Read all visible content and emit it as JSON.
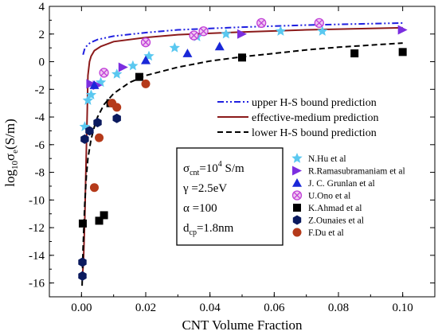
{
  "chart_data": {
    "type": "scatter",
    "xlabel": "CNT Volume Fraction",
    "ylabel": {
      "main": "log",
      "sub1": "10",
      "mid": "σ",
      "sub2": "e",
      "tail": "(S/m)"
    },
    "xlim": [
      -0.01,
      0.11
    ],
    "ylim": [
      -17,
      4
    ],
    "x_ticks": [
      0.0,
      0.02,
      0.04,
      0.06,
      0.08,
      0.1
    ],
    "x_tick_labels": [
      "0.00",
      "0.02",
      "0.04",
      "0.06",
      "0.08",
      "0.10"
    ],
    "y_ticks": [
      -16,
      -14,
      -12,
      -10,
      -8,
      -6,
      -4,
      -2,
      0,
      2,
      4
    ],
    "y_tick_labels": [
      "-16",
      "-14",
      "-12",
      "-10",
      "-8",
      "-6",
      "-4",
      "-2",
      "0",
      "2",
      "4"
    ],
    "grid": false,
    "line_legend_placement": "center-right",
    "marker_legend_placement": "bottom-right",
    "lines": [
      {
        "name": "upper H-S bound prediction",
        "color": "#1f1fe0",
        "dash": "dashdotdot",
        "x": [
          0.0005,
          0.001,
          0.002,
          0.003,
          0.005,
          0.01,
          0.02,
          0.03,
          0.05,
          0.07,
          0.1
        ],
        "y": [
          0.5,
          0.95,
          1.25,
          1.4,
          1.6,
          1.85,
          2.1,
          2.3,
          2.5,
          2.65,
          2.8
        ]
      },
      {
        "name": "effective-medium prediction",
        "color": "#8b1a1a",
        "dash": "solid",
        "x": [
          0.0003,
          0.0006,
          0.0008,
          0.001,
          0.0012,
          0.0014,
          0.0016,
          0.0018,
          0.002,
          0.0025,
          0.003,
          0.004,
          0.006,
          0.01,
          0.02,
          0.03,
          0.05,
          0.07,
          0.1
        ],
        "y": [
          -15.5,
          -14.5,
          -13,
          -11.5,
          -9.5,
          -7.5,
          -5.5,
          -3.5,
          -1.0,
          0.0,
          0.4,
          0.8,
          1.1,
          1.45,
          1.75,
          1.95,
          2.15,
          2.3,
          2.45
        ]
      },
      {
        "name": "lower H-S bound prediction",
        "color": "#000000",
        "dash": "dashed",
        "x": [
          0.0002,
          0.0005,
          0.001,
          0.0015,
          0.002,
          0.003,
          0.004,
          0.005,
          0.007,
          0.01,
          0.015,
          0.02,
          0.03,
          0.04,
          0.05,
          0.06,
          0.07,
          0.08,
          0.09,
          0.1
        ],
        "y": [
          -16.2,
          -13.5,
          -10.3,
          -8.3,
          -7.0,
          -5.6,
          -4.7,
          -4.0,
          -3.1,
          -2.3,
          -1.5,
          -1.0,
          -0.4,
          0.05,
          0.35,
          0.6,
          0.85,
          1.05,
          1.2,
          1.35
        ]
      }
    ],
    "series": [
      {
        "name": "N.Hu et al",
        "color": "#5ac8f0",
        "marker": "star",
        "x": [
          0.001,
          0.002,
          0.003,
          0.006,
          0.011,
          0.016,
          0.021,
          0.029,
          0.036,
          0.045,
          0.062,
          0.075
        ],
        "y": [
          -4.7,
          -2.8,
          -2.4,
          -1.5,
          -0.9,
          -0.3,
          0.4,
          1.0,
          1.8,
          2.0,
          2.2,
          2.2
        ]
      },
      {
        "name": "R.Ramasubramaniam et al",
        "color": "#7b2ee0",
        "marker": "tri-right",
        "x": [
          0.003,
          0.005,
          0.013,
          0.05,
          0.1
        ],
        "y": [
          -1.6,
          -1.7,
          -0.4,
          2.0,
          2.3
        ]
      },
      {
        "name": "J. C. Grunlan et al",
        "color": "#1a28d8",
        "marker": "tri-up",
        "x": [
          0.004,
          0.02,
          0.033,
          0.043
        ],
        "y": [
          -1.7,
          0.1,
          0.6,
          1.1
        ]
      },
      {
        "name": "U.Ono et al",
        "color": "#c040d8",
        "marker": "circle-x",
        "x": [
          0.007,
          0.02,
          0.035,
          0.038,
          0.056,
          0.074
        ],
        "y": [
          -0.8,
          1.4,
          1.9,
          2.2,
          2.8,
          2.8
        ]
      },
      {
        "name": "K.Ahmad et al",
        "color": "#000000",
        "marker": "square",
        "x": [
          0.0004,
          0.0055,
          0.007,
          0.009,
          0.018,
          0.05,
          0.085,
          0.1
        ],
        "y": [
          -11.7,
          -11.5,
          -11.1,
          -3.0,
          -1.1,
          0.3,
          0.6,
          0.7
        ]
      },
      {
        "name": "Z.Ounaies et al",
        "color": "#0b1a5e",
        "marker": "hexagon",
        "x": [
          0.0003,
          0.0003,
          0.001,
          0.0025,
          0.005,
          0.011
        ],
        "y": [
          -15.5,
          -14.5,
          -5.6,
          -5.0,
          -4.4,
          -4.1
        ]
      },
      {
        "name": "F.Du et al",
        "color": "#b53a1a",
        "marker": "circle",
        "x": [
          0.004,
          0.0055,
          0.0095,
          0.011,
          0.02
        ],
        "y": [
          -9.1,
          -5.5,
          -3.0,
          -3.3,
          -1.6
        ]
      }
    ],
    "parameter_box": [
      {
        "sym": "σ",
        "sub": "cnt",
        "eq": "=10",
        "sup": "4",
        "tail": " S/m"
      },
      {
        "sym": "γ",
        "sub": "",
        "eq": " =2.5eV",
        "sup": "",
        "tail": ""
      },
      {
        "sym": "α",
        "sub": "",
        "eq": " =100",
        "sup": "",
        "tail": ""
      },
      {
        "sym": "d",
        "sub": "cp",
        "eq": "=1.8nm",
        "sup": "",
        "tail": ""
      }
    ]
  }
}
